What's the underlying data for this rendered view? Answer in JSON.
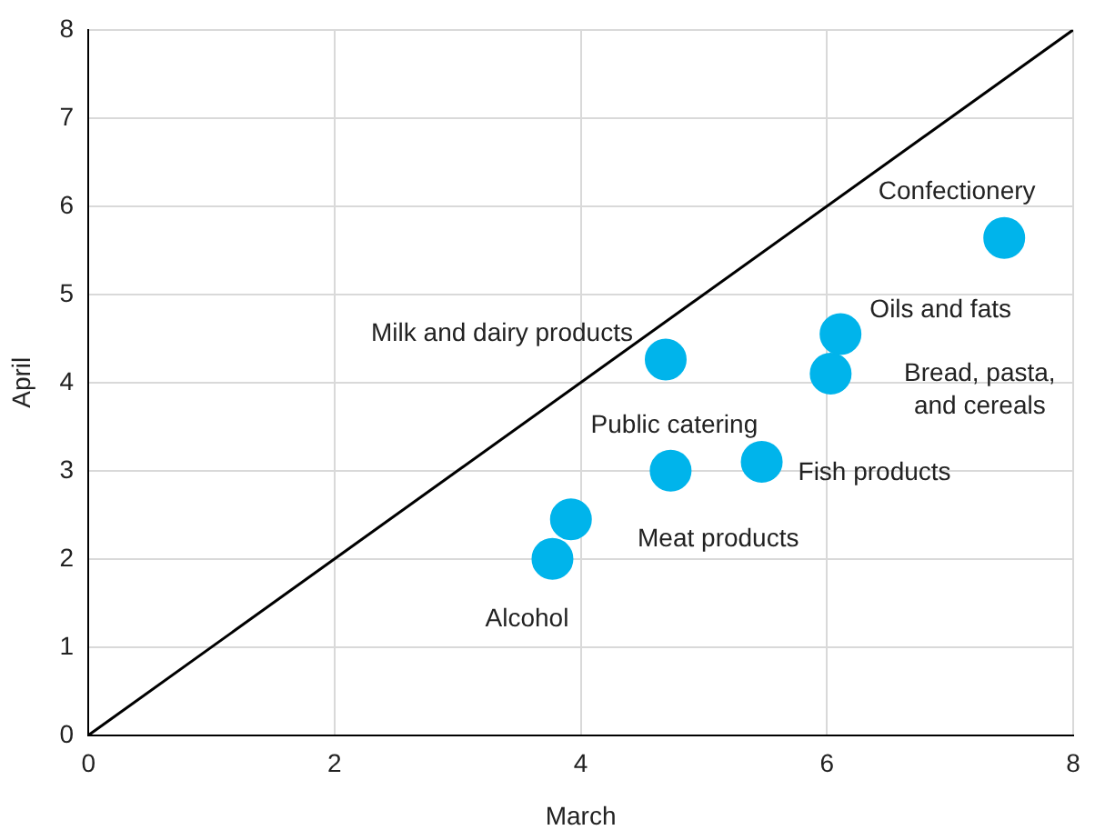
{
  "chart_data": {
    "type": "scatter",
    "xlabel": "March",
    "ylabel": "April",
    "series": [
      {
        "marker": "circle",
        "color": "#00b4eb",
        "x": [
          3.77,
          3.92,
          4.69,
          4.73,
          5.47,
          6.03,
          6.11,
          7.44
        ],
        "values": [
          2.0,
          2.45,
          4.26,
          3.0,
          3.1,
          4.1,
          4.55,
          5.64
        ]
      },
      {
        "type": "line",
        "marker": "none",
        "color": "#000000",
        "x": [
          0,
          8
        ],
        "values": [
          0,
          8
        ]
      }
    ],
    "xlim": [
      0,
      8
    ],
    "ylim": [
      0,
      8
    ],
    "xticks": [
      0,
      2,
      4,
      6,
      8
    ],
    "yticks": [
      0,
      1,
      2,
      3,
      4,
      5,
      6,
      7,
      8
    ],
    "grid": true,
    "legend": false,
    "annotations": [
      {
        "text": "Confectionery",
        "x": 7.44,
        "y": 5.64
      },
      {
        "text": "Oils and fats",
        "x": 6.11,
        "y": 4.55
      },
      {
        "text": "Bread, pasta,\nand cereals",
        "x": 6.03,
        "y": 4.1
      },
      {
        "text": "Fish products",
        "x": 5.47,
        "y": 3.1
      },
      {
        "text": "Meat products",
        "x": 3.92,
        "y": 2.45
      },
      {
        "text": "Alcohol",
        "x": 3.77,
        "y": 2.0
      },
      {
        "text": "Public catering",
        "x": 4.73,
        "y": 3.0
      },
      {
        "text": "Milk and dairy products",
        "x": 4.69,
        "y": 4.26
      }
    ]
  }
}
